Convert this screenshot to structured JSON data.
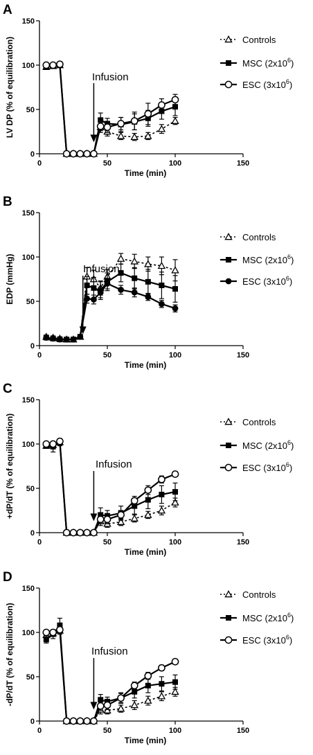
{
  "chart_data": [
    {
      "type": "line",
      "panel_label": "A",
      "xlabel": "Time (min)",
      "ylabel": "LV DP (% of equilibration)",
      "xlim": [
        0,
        150
      ],
      "ylim": [
        0,
        150
      ],
      "xticks": [
        0,
        50,
        100,
        150
      ],
      "yticks": [
        0,
        50,
        100,
        150
      ],
      "legend_position": "right",
      "annotation": {
        "text": "Infusion",
        "x": 40
      },
      "series": [
        {
          "name": "Controls",
          "marker": "open-triangle",
          "style": "dashed",
          "x": [
            5,
            10,
            15,
            20,
            25,
            30,
            35,
            40,
            45,
            50,
            60,
            70,
            80,
            90,
            100
          ],
          "y": [
            98,
            99,
            100,
            0,
            0,
            0,
            0,
            0,
            30,
            25,
            20,
            19,
            20,
            28,
            37
          ],
          "err": [
            3,
            2,
            2,
            0,
            0,
            0,
            0,
            0,
            6,
            5,
            4,
            4,
            4,
            5,
            4
          ]
        },
        {
          "name": "MSC (2x10",
          "name_sup": "6",
          "name_tail": ")",
          "marker": "filled-square",
          "style": "solid",
          "x": [
            5,
            10,
            15,
            20,
            25,
            30,
            35,
            40,
            45,
            50,
            60,
            70,
            80,
            90,
            100
          ],
          "y": [
            98,
            99,
            100,
            0,
            0,
            0,
            0,
            0,
            38,
            34,
            33,
            36,
            40,
            48,
            53
          ],
          "err": [
            3,
            2,
            2,
            0,
            0,
            0,
            0,
            0,
            8,
            6,
            8,
            9,
            9,
            9,
            10
          ]
        },
        {
          "name": "ESC (3x10",
          "name_sup": "6",
          "name_tail": ")",
          "marker": "open-circle",
          "style": "solid",
          "x": [
            5,
            10,
            15,
            20,
            25,
            30,
            35,
            40,
            45,
            50,
            60,
            70,
            80,
            90,
            100
          ],
          "y": [
            100,
            100,
            101,
            0,
            0,
            0,
            0,
            0,
            31,
            30,
            34,
            37,
            45,
            55,
            61
          ],
          "err": [
            2,
            2,
            2,
            0,
            0,
            0,
            0,
            0,
            5,
            6,
            7,
            10,
            12,
            7,
            6
          ]
        }
      ]
    },
    {
      "type": "line",
      "panel_label": "B",
      "xlabel": "Time (min)",
      "ylabel": "EDP (mmHg)",
      "xlim": [
        0,
        150
      ],
      "ylim": [
        0,
        150
      ],
      "xticks": [
        0,
        50,
        100,
        150
      ],
      "yticks": [
        0,
        50,
        100,
        150
      ],
      "legend_position": "right",
      "annotation": {
        "text": "Infusion",
        "x": 32
      },
      "series": [
        {
          "name": "Controls",
          "marker": "open-triangle",
          "style": "dashed",
          "x": [
            5,
            10,
            15,
            20,
            25,
            30,
            35,
            40,
            45,
            50,
            60,
            70,
            80,
            90,
            100
          ],
          "y": [
            10,
            9,
            8,
            7,
            7,
            10,
            78,
            75,
            65,
            78,
            98,
            95,
            92,
            90,
            85
          ],
          "err": [
            2,
            2,
            2,
            2,
            2,
            2,
            10,
            10,
            8,
            8,
            6,
            8,
            8,
            10,
            12
          ]
        },
        {
          "name": "MSC (2x10",
          "name_sup": "6",
          "name_tail": ")",
          "marker": "filled-square",
          "style": "solid",
          "x": [
            5,
            10,
            15,
            20,
            25,
            30,
            35,
            40,
            45,
            50,
            60,
            70,
            80,
            90,
            100
          ],
          "y": [
            9,
            8,
            7,
            7,
            7,
            10,
            68,
            65,
            62,
            72,
            82,
            76,
            72,
            68,
            64
          ],
          "err": [
            2,
            2,
            2,
            2,
            2,
            2,
            10,
            12,
            10,
            10,
            10,
            12,
            14,
            15,
            15
          ]
        },
        {
          "name": "ESC (3x10",
          "name_sup": "6",
          "name_tail": ")",
          "marker": "filled-circle",
          "style": "solid",
          "x": [
            5,
            10,
            15,
            20,
            25,
            30,
            35,
            40,
            45,
            50,
            60,
            70,
            80,
            90,
            100
          ],
          "y": [
            9,
            8,
            7,
            7,
            7,
            10,
            53,
            52,
            60,
            70,
            63,
            60,
            55,
            47,
            42
          ],
          "err": [
            2,
            2,
            2,
            2,
            2,
            2,
            5,
            5,
            6,
            6,
            5,
            5,
            4,
            4,
            4
          ]
        }
      ]
    },
    {
      "type": "line",
      "panel_label": "C",
      "xlabel": "Time (min)",
      "ylabel": "+dP/dT (% of equilibration)",
      "xlim": [
        0,
        150
      ],
      "ylim": [
        0,
        150
      ],
      "xticks": [
        0,
        50,
        100,
        150
      ],
      "yticks": [
        0,
        50,
        100,
        150
      ],
      "legend_position": "right",
      "annotation": {
        "text": "Infusion",
        "x": 40
      },
      "series": [
        {
          "name": "Controls",
          "marker": "open-triangle",
          "style": "dashed",
          "x": [
            5,
            10,
            15,
            20,
            25,
            30,
            35,
            40,
            45,
            50,
            60,
            70,
            80,
            90,
            100
          ],
          "y": [
            98,
            99,
            102,
            0,
            0,
            0,
            0,
            0,
            13,
            10,
            12,
            16,
            20,
            25,
            34
          ],
          "err": [
            3,
            3,
            3,
            0,
            0,
            0,
            0,
            0,
            5,
            4,
            4,
            4,
            4,
            5,
            5
          ]
        },
        {
          "name": "MSC (2x10",
          "name_sup": "6",
          "name_tail": ")",
          "marker": "filled-square",
          "style": "solid",
          "x": [
            5,
            10,
            15,
            20,
            25,
            30,
            35,
            40,
            45,
            50,
            60,
            70,
            80,
            90,
            100
          ],
          "y": [
            98,
            97,
            102,
            0,
            0,
            0,
            0,
            0,
            20,
            19,
            22,
            30,
            37,
            43,
            46
          ],
          "err": [
            3,
            6,
            4,
            0,
            0,
            0,
            0,
            0,
            8,
            6,
            8,
            9,
            10,
            10,
            10
          ]
        },
        {
          "name": "ESC (3x10",
          "name_sup": "6",
          "name_tail": ")",
          "marker": "open-circle",
          "style": "solid",
          "x": [
            5,
            10,
            15,
            20,
            25,
            30,
            35,
            40,
            45,
            50,
            60,
            70,
            80,
            90,
            100
          ],
          "y": [
            100,
            100,
            103,
            0,
            0,
            0,
            0,
            0,
            15,
            15,
            20,
            36,
            48,
            60,
            66
          ],
          "err": [
            2,
            2,
            2,
            0,
            0,
            0,
            0,
            0,
            5,
            5,
            5,
            5,
            5,
            4,
            3
          ]
        }
      ]
    },
    {
      "type": "line",
      "panel_label": "D",
      "xlabel": "Time (min)",
      "ylabel": "-dP/dT (% of equilibration)",
      "xlim": [
        0,
        150
      ],
      "ylim": [
        0,
        150
      ],
      "xticks": [
        0,
        50,
        100,
        150
      ],
      "yticks": [
        0,
        50,
        100,
        150
      ],
      "legend_position": "right",
      "annotation": {
        "text": "Infusion",
        "x": 40
      },
      "series": [
        {
          "name": "Controls",
          "marker": "open-triangle",
          "style": "dashed",
          "x": [
            5,
            10,
            15,
            20,
            25,
            30,
            35,
            40,
            45,
            50,
            60,
            70,
            80,
            90,
            100
          ],
          "y": [
            97,
            99,
            102,
            0,
            0,
            0,
            0,
            0,
            13,
            12,
            14,
            18,
            23,
            28,
            33
          ],
          "err": [
            3,
            3,
            4,
            0,
            0,
            0,
            0,
            0,
            5,
            4,
            4,
            5,
            5,
            5,
            5
          ]
        },
        {
          "name": "MSC (2x10",
          "name_sup": "6",
          "name_tail": ")",
          "marker": "filled-square",
          "style": "solid",
          "x": [
            5,
            10,
            15,
            20,
            25,
            30,
            35,
            40,
            45,
            50,
            60,
            70,
            80,
            90,
            100
          ],
          "y": [
            92,
            98,
            108,
            0,
            0,
            0,
            0,
            0,
            24,
            22,
            26,
            33,
            40,
            42,
            44
          ],
          "err": [
            4,
            5,
            8,
            0,
            0,
            0,
            0,
            0,
            6,
            5,
            6,
            7,
            8,
            8,
            8
          ]
        },
        {
          "name": "ESC (3x10",
          "name_sup": "6",
          "name_tail": ")",
          "marker": "open-circle",
          "style": "solid",
          "x": [
            5,
            10,
            15,
            20,
            25,
            30,
            35,
            40,
            45,
            50,
            60,
            70,
            80,
            90,
            100
          ],
          "y": [
            100,
            100,
            103,
            0,
            0,
            0,
            0,
            0,
            17,
            18,
            26,
            40,
            51,
            60,
            67
          ],
          "err": [
            2,
            2,
            2,
            0,
            0,
            0,
            0,
            0,
            5,
            5,
            5,
            4,
            4,
            3,
            3
          ]
        }
      ]
    }
  ]
}
